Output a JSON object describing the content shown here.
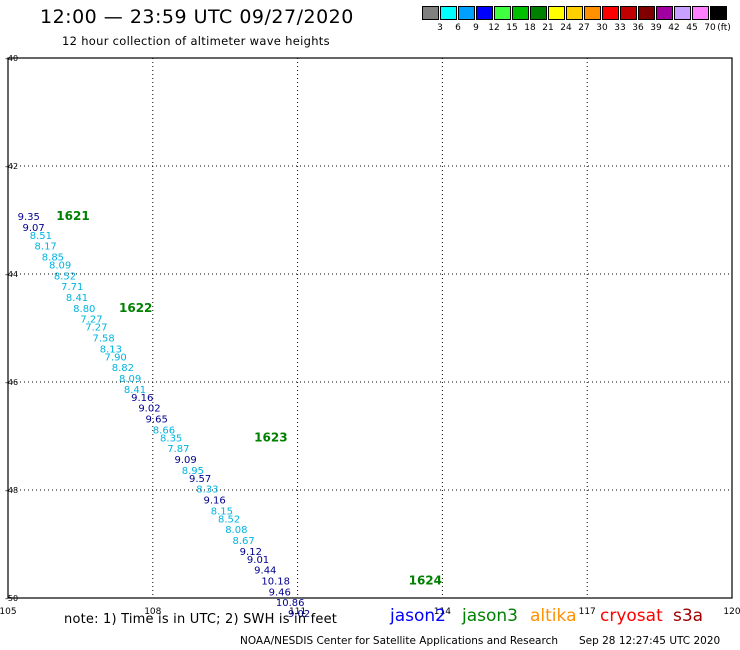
{
  "header": {
    "title": "12:00 — 23:59 UTC 09/27/2020",
    "subtitle": "12 hour collection of altimeter wave heights"
  },
  "legend": {
    "unit": "(ft)",
    "bins": [
      {
        "label": "3",
        "color": "#808080"
      },
      {
        "label": "6",
        "color": "#00ffff"
      },
      {
        "label": "9",
        "color": "#00a0ff"
      },
      {
        "label": "12",
        "color": "#0000ff"
      },
      {
        "label": "15",
        "color": "#40ff40"
      },
      {
        "label": "18",
        "color": "#00c000"
      },
      {
        "label": "21",
        "color": "#008000"
      },
      {
        "label": "24",
        "color": "#ffff00"
      },
      {
        "label": "27",
        "color": "#ffd000"
      },
      {
        "label": "30",
        "color": "#ff9000"
      },
      {
        "label": "33",
        "color": "#ff0000"
      },
      {
        "label": "36",
        "color": "#c00000"
      },
      {
        "label": "39",
        "color": "#800000"
      },
      {
        "label": "42",
        "color": "#a000a0"
      },
      {
        "label": "45",
        "color": "#c8a0ff"
      },
      {
        "label": "70",
        "color": "#ff80ff"
      },
      {
        "label": "",
        "color": "#000000"
      }
    ]
  },
  "map": {
    "lon_ticks": [
      "105",
      "108",
      "111",
      "114",
      "117",
      "120"
    ],
    "lat_ticks": [
      "-40",
      "-42",
      "-44",
      "-46",
      "-48",
      "-50"
    ],
    "lon_range": [
      105,
      120
    ],
    "lat_range": [
      -40,
      -50
    ],
    "grid": "dotted",
    "colors": {
      "deep": "#000090",
      "light": "#00b4e0",
      "pass": "#008000"
    },
    "passes": [
      {
        "label": "1621",
        "lon": 106.0,
        "lat": -43.0
      },
      {
        "label": "1622",
        "lon": 107.3,
        "lat": -44.7
      },
      {
        "label": "1623",
        "lon": 110.1,
        "lat": -47.1
      },
      {
        "label": "1624",
        "lon": 113.3,
        "lat": -49.75
      }
    ],
    "observations": [
      {
        "v": "9.35",
        "lon": 105.2,
        "lat": -43.0,
        "c": "deep"
      },
      {
        "v": "9.07",
        "lon": 105.3,
        "lat": -43.2,
        "c": "deep"
      },
      {
        "v": "8.51",
        "lon": 105.45,
        "lat": -43.35,
        "c": "light"
      },
      {
        "v": "8.17",
        "lon": 105.55,
        "lat": -43.55,
        "c": "light"
      },
      {
        "v": "8.85",
        "lon": 105.7,
        "lat": -43.75,
        "c": "light"
      },
      {
        "v": "8.09",
        "lon": 105.85,
        "lat": -43.9,
        "c": "light"
      },
      {
        "v": "8.52",
        "lon": 105.95,
        "lat": -44.1,
        "c": "light"
      },
      {
        "v": "7.71",
        "lon": 106.1,
        "lat": -44.3,
        "c": "light"
      },
      {
        "v": "8.41",
        "lon": 106.2,
        "lat": -44.5,
        "c": "light"
      },
      {
        "v": "8.80",
        "lon": 106.35,
        "lat": -44.7,
        "c": "light"
      },
      {
        "v": "7.27",
        "lon": 106.5,
        "lat": -44.9,
        "c": "light"
      },
      {
        "v": "7.27",
        "lon": 106.6,
        "lat": -45.05,
        "c": "light"
      },
      {
        "v": "7.58",
        "lon": 106.75,
        "lat": -45.25,
        "c": "light"
      },
      {
        "v": "8.13",
        "lon": 106.9,
        "lat": -45.45,
        "c": "light"
      },
      {
        "v": "7.90",
        "lon": 107.0,
        "lat": -45.6,
        "c": "light"
      },
      {
        "v": "8.82",
        "lon": 107.15,
        "lat": -45.8,
        "c": "light"
      },
      {
        "v": "8.09",
        "lon": 107.3,
        "lat": -46.0,
        "c": "light"
      },
      {
        "v": "8.41",
        "lon": 107.4,
        "lat": -46.2,
        "c": "light"
      },
      {
        "v": "9.16",
        "lon": 107.55,
        "lat": -46.35,
        "c": "deep"
      },
      {
        "v": "9.02",
        "lon": 107.7,
        "lat": -46.55,
        "c": "deep"
      },
      {
        "v": "9.65",
        "lon": 107.85,
        "lat": -46.75,
        "c": "deep"
      },
      {
        "v": "8.66",
        "lon": 108.0,
        "lat": -46.95,
        "c": "light"
      },
      {
        "v": "8.35",
        "lon": 108.15,
        "lat": -47.1,
        "c": "light"
      },
      {
        "v": "7.87",
        "lon": 108.3,
        "lat": -47.3,
        "c": "light"
      },
      {
        "v": "9.09",
        "lon": 108.45,
        "lat": -47.5,
        "c": "deep"
      },
      {
        "v": "8.95",
        "lon": 108.6,
        "lat": -47.7,
        "c": "light"
      },
      {
        "v": "9.57",
        "lon": 108.75,
        "lat": -47.85,
        "c": "deep"
      },
      {
        "v": "8.33",
        "lon": 108.9,
        "lat": -48.05,
        "c": "light"
      },
      {
        "v": "9.16",
        "lon": 109.05,
        "lat": -48.25,
        "c": "deep"
      },
      {
        "v": "8.15",
        "lon": 109.2,
        "lat": -48.45,
        "c": "light"
      },
      {
        "v": "8.52",
        "lon": 109.35,
        "lat": -48.6,
        "c": "light"
      },
      {
        "v": "8.08",
        "lon": 109.5,
        "lat": -48.8,
        "c": "light"
      },
      {
        "v": "8.67",
        "lon": 109.65,
        "lat": -49.0,
        "c": "light"
      },
      {
        "v": "9.12",
        "lon": 109.8,
        "lat": -49.2,
        "c": "deep"
      },
      {
        "v": "9.01",
        "lon": 109.95,
        "lat": -49.35,
        "c": "deep"
      },
      {
        "v": "9.44",
        "lon": 110.1,
        "lat": -49.55,
        "c": "deep"
      },
      {
        "v": "10.18",
        "lon": 110.25,
        "lat": -49.75,
        "c": "deep"
      },
      {
        "v": "9.46",
        "lon": 110.4,
        "lat": -49.95,
        "c": "deep"
      },
      {
        "v": "10.86",
        "lon": 110.55,
        "lat": -50.15,
        "c": "deep"
      },
      {
        "v": "9.02",
        "lon": 110.8,
        "lat": -50.35,
        "c": "deep"
      }
    ]
  },
  "footer": {
    "note": "note:  1) Time is in UTC;  2) SWH is in feet",
    "satellites": [
      {
        "label": "jason2",
        "color": "#0000ff"
      },
      {
        "label": "jason3",
        "color": "#008000"
      },
      {
        "label": "altika",
        "color": "#ff9000"
      },
      {
        "label": "cryosat",
        "color": "#ff0000"
      },
      {
        "label": "s3a",
        "color": "#a00000"
      }
    ],
    "credit": "NOAA/NESDIS Center for Satellite Applications and Research",
    "timestamp": "Sep 28 12:27:45 UTC 2020"
  }
}
